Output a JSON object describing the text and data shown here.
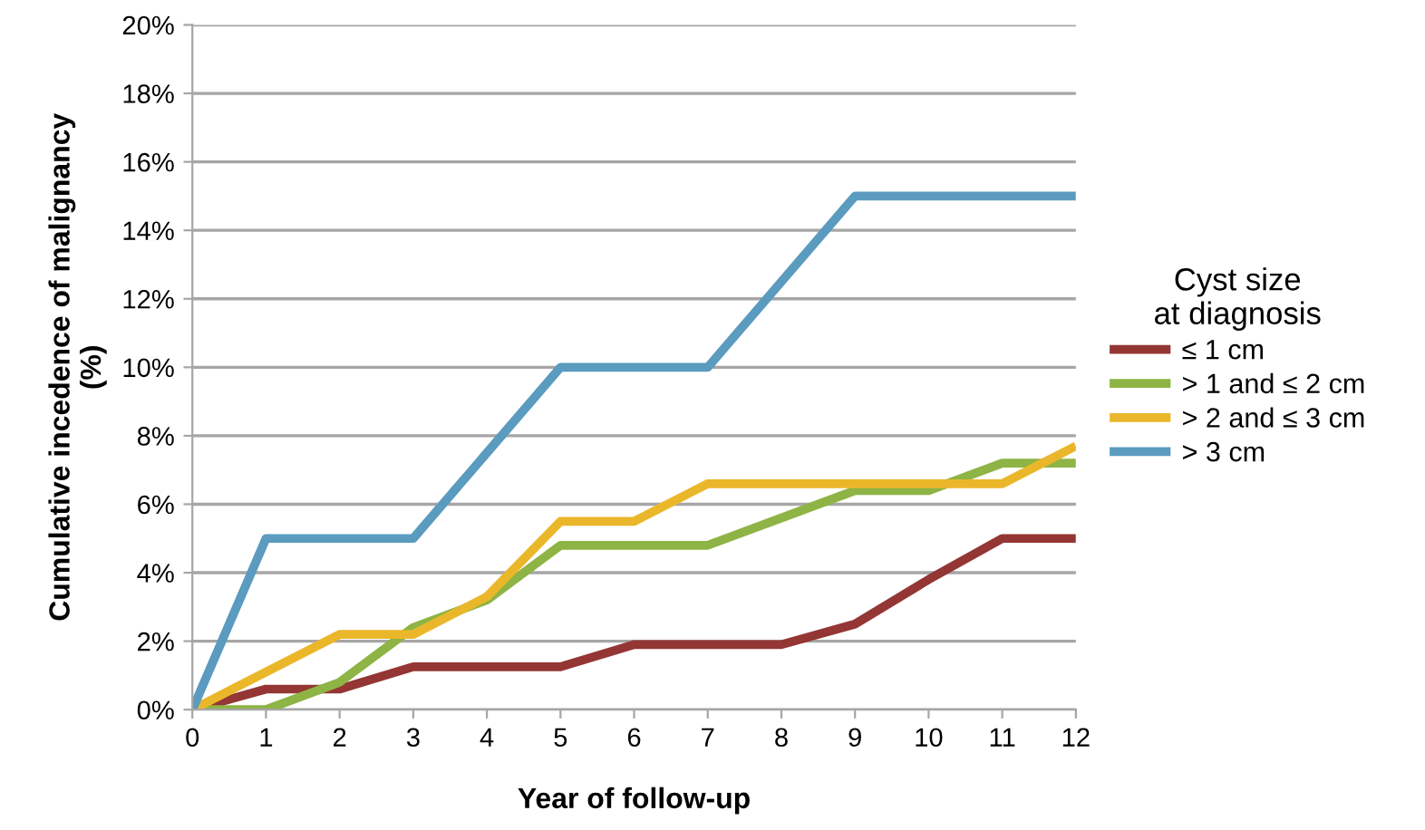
{
  "chart_data": {
    "type": "line",
    "xlabel": "Year of follow-up",
    "ylabel": "Cumulative incedence of malignancy\n(%)",
    "legend_title": "Cyst size\nat diagnosis",
    "legend": "right",
    "grid": "y",
    "marker": "none",
    "line_style": "solid",
    "x": [
      0,
      1,
      2,
      3,
      4,
      5,
      6,
      7,
      8,
      9,
      10,
      11,
      12
    ],
    "xlim": [
      0,
      12
    ],
    "xticks": [
      0,
      1,
      2,
      3,
      4,
      5,
      6,
      7,
      8,
      9,
      10,
      11,
      12
    ],
    "ylim": [
      0,
      20
    ],
    "yticks": [
      {
        "value": 0,
        "label": "0%"
      },
      {
        "value": 2,
        "label": "2%"
      },
      {
        "value": 4,
        "label": "4%"
      },
      {
        "value": 6,
        "label": "6%"
      },
      {
        "value": 8,
        "label": "8%"
      },
      {
        "value": 10,
        "label": "10%"
      },
      {
        "value": 12,
        "label": "12%"
      },
      {
        "value": 14,
        "label": "14%"
      },
      {
        "value": 16,
        "label": "16%"
      },
      {
        "value": 18,
        "label": "18%"
      },
      {
        "value": 20,
        "label": "20%"
      }
    ],
    "series": [
      {
        "name": "≤ 1 cm",
        "color": "#943634",
        "values": [
          0,
          0.6,
          0.6,
          1.25,
          1.25,
          1.25,
          1.9,
          1.9,
          1.9,
          2.5,
          3.8,
          5,
          5
        ]
      },
      {
        "name": "> 1 and ≤ 2 cm",
        "color": "#8db444",
        "values": [
          0,
          0,
          0.8,
          2.4,
          3.2,
          4.8,
          4.8,
          4.8,
          5.6,
          6.4,
          6.4,
          7.2,
          7.2
        ]
      },
      {
        "name": "> 2 and ≤ 3 cm",
        "color": "#ebb72a",
        "values": [
          0,
          1.1,
          2.2,
          2.2,
          3.3,
          5.5,
          5.5,
          6.6,
          6.6,
          6.6,
          6.6,
          6.6,
          7.7
        ]
      },
      {
        "name": "> 3 cm",
        "color": "#5a9bbf",
        "values": [
          0,
          5,
          5,
          5,
          7.5,
          10,
          10,
          10,
          12.5,
          15,
          15,
          15,
          15
        ]
      }
    ]
  }
}
